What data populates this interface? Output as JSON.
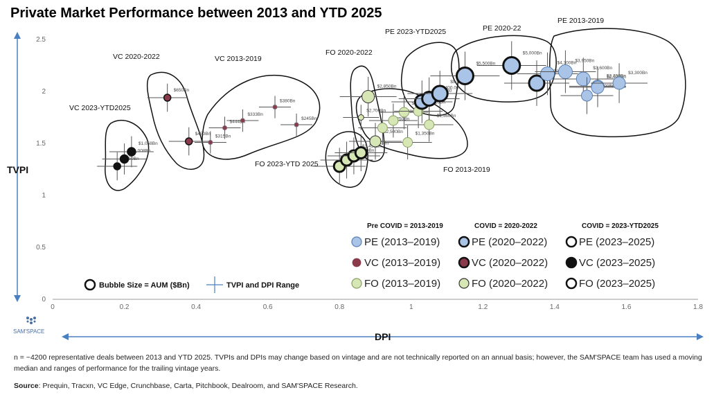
{
  "chart_data": {
    "type": "scatter",
    "title": "Private Market Performance between 2013 and YTD 2025",
    "xlabel": "DPI",
    "ylabel": "TVPI",
    "xlim": [
      0,
      1.8
    ],
    "ylim": [
      0,
      2.5
    ],
    "x_ticks": [
      "0",
      "0.2",
      "0.4",
      "0.6",
      "0.8",
      "1",
      "1.2",
      "1.4",
      "1.6",
      "1.8"
    ],
    "y_ticks": [
      "0",
      "0.5",
      "1",
      "1.5",
      "2",
      "2.5"
    ],
    "colors": {
      "pe": "#a9c4e6",
      "vc": "#8b3a4a",
      "fo": "#d6e6b4",
      "outline": "#111111",
      "range": "#555555",
      "axis_arrow": "#4a7fc0"
    },
    "groups": [
      {
        "label": "VC 2023-YTD2025"
      },
      {
        "label": "VC 2020-2022"
      },
      {
        "label": "VC 2013-2019"
      },
      {
        "label": "FO 2020-2022"
      },
      {
        "label": "FO 2023-YTD 2025"
      },
      {
        "label": "PE 2023-YTD2025"
      },
      {
        "label": "PE 2020-22"
      },
      {
        "label": "PE 2013-2019"
      },
      {
        "label": "FO 2013-2019"
      }
    ],
    "series": [
      {
        "name": "VC 2023-YTD2025",
        "fill": "#111111",
        "ring": "#111111",
        "points": [
          {
            "x": 0.18,
            "y": 1.28,
            "aum": "$950Bn",
            "r": 5
          },
          {
            "x": 0.2,
            "y": 1.35,
            "aum": "$1,008Bn",
            "r": 6
          },
          {
            "x": 0.22,
            "y": 1.42,
            "aum": "$1,058Bn",
            "r": 6
          }
        ]
      },
      {
        "name": "VC 2020-2022",
        "fill": "#8b3a4a",
        "ring": "#111111",
        "points": [
          {
            "x": 0.32,
            "y": 1.94,
            "aum": "$650Bn",
            "r": 5
          },
          {
            "x": 0.38,
            "y": 1.52,
            "aum": "$450Bn",
            "r": 5
          }
        ]
      },
      {
        "name": "VC 2013-2019",
        "fill": "#8b3a4a",
        "ring": "#7a6a7a",
        "points": [
          {
            "x": 0.44,
            "y": 1.51,
            "aum": "$315Bn",
            "r": 3
          },
          {
            "x": 0.48,
            "y": 1.65,
            "aum": "$444Bn",
            "r": 3
          },
          {
            "x": 0.53,
            "y": 1.72,
            "aum": "$333Bn",
            "r": 3
          },
          {
            "x": 0.62,
            "y": 1.85,
            "aum": "$380Bn",
            "r": 3
          },
          {
            "x": 0.68,
            "y": 1.68,
            "aum": "$245Bn",
            "r": 3
          }
        ]
      },
      {
        "name": "FO 2023-YTD2025",
        "fill": "#d6e6b4",
        "ring": "#111111",
        "points": [
          {
            "x": 0.8,
            "y": 1.28,
            "aum": "$3,608Bn",
            "r": 8
          },
          {
            "x": 0.82,
            "y": 1.34,
            "aum": "$3,650Bn",
            "r": 8
          },
          {
            "x": 0.84,
            "y": 1.38,
            "aum": "$3,450Bn",
            "r": 8
          },
          {
            "x": 0.86,
            "y": 1.41,
            "aum": "$3,200Bn",
            "r": 8
          }
        ]
      },
      {
        "name": "FO 2020-2022",
        "fill": "#d6e6b4",
        "ring": "#333333",
        "points": [
          {
            "x": 0.86,
            "y": 1.75,
            "aum": "$2,700Bn",
            "r": 4
          },
          {
            "x": 0.88,
            "y": 1.95,
            "aum": "$2,850Bn",
            "r": 9
          },
          {
            "x": 0.9,
            "y": 1.52,
            "aum": "$2,500Bn",
            "r": 8
          }
        ]
      },
      {
        "name": "FO 2013-2019",
        "fill": "#d6e6b4",
        "ring": "#8aa066",
        "points": [
          {
            "x": 0.92,
            "y": 1.65,
            "aum": "$2,250Bn",
            "r": 7
          },
          {
            "x": 0.95,
            "y": 1.72,
            "aum": "$1,700Bn",
            "r": 7
          },
          {
            "x": 0.98,
            "y": 1.8,
            "aum": "$1,450Bn",
            "r": 7
          },
          {
            "x": 0.99,
            "y": 1.51,
            "aum": "$1,350Bn",
            "r": 7
          },
          {
            "x": 1.02,
            "y": 1.81,
            "aum": "$1,810Bn",
            "r": 7
          },
          {
            "x": 1.05,
            "y": 1.68,
            "aum": "$1,560Bn",
            "r": 7
          }
        ]
      },
      {
        "name": "PE 2023-YTD2025",
        "fill": "#a9c4e6",
        "ring": "#111111",
        "points": [
          {
            "x": 1.03,
            "y": 1.9,
            "aum": "$5,500.00",
            "r": 10
          },
          {
            "x": 1.05,
            "y": 1.93,
            "aum": "$5,400.00",
            "r": 10
          },
          {
            "x": 1.08,
            "y": 1.98,
            "aum": "$5,500.00",
            "r": 11
          }
        ]
      },
      {
        "name": "PE 2020-22",
        "fill": "#a9c4e6",
        "ring": "#111111",
        "points": [
          {
            "x": 1.15,
            "y": 2.15,
            "aum": "$5,500Bn",
            "r": 12
          },
          {
            "x": 1.28,
            "y": 2.25,
            "aum": "$5,000Bn",
            "r": 12
          },
          {
            "x": 1.35,
            "y": 2.08,
            "aum": "$4,500Bn",
            "r": 11
          }
        ]
      },
      {
        "name": "PE 2013-2019",
        "fill": "#a9c4e6",
        "ring": "#5b7fb2",
        "points": [
          {
            "x": 1.38,
            "y": 2.17,
            "aum": "$4,300Bn",
            "r": 10
          },
          {
            "x": 1.43,
            "y": 2.19,
            "aum": "$3,950Bn",
            "r": 10
          },
          {
            "x": 1.48,
            "y": 2.12,
            "aum": "$3,600Bn",
            "r": 10
          },
          {
            "x": 1.52,
            "y": 2.05,
            "aum": "$2,700Bn",
            "r": 9
          },
          {
            "x": 1.49,
            "y": 1.96,
            "aum": "$2,500Bn",
            "r": 8
          },
          {
            "x": 1.52,
            "y": 2.04,
            "aum": "$2,900Bn",
            "r": 9
          },
          {
            "x": 1.58,
            "y": 2.08,
            "aum": "$3,300Bn",
            "r": 9
          }
        ]
      }
    ]
  },
  "legend": {
    "columns": [
      {
        "heading": "Pre COVID = 2013-2019",
        "items": [
          {
            "label": "PE (2013–2019)",
            "fill": "#a9c4e6",
            "ring": "#5b7fb2"
          },
          {
            "label": "VC (2013–2019)",
            "fill": "#8b3a4a",
            "ring": "#ffffff"
          },
          {
            "label": "FO (2013–2019)",
            "fill": "#d6e6b4",
            "ring": "#8aa066"
          }
        ]
      },
      {
        "heading": "COVID = 2020-2022",
        "items": [
          {
            "label": "PE (2020–2022)",
            "fill": "#a9c4e6",
            "ring": "#111111"
          },
          {
            "label": "VC (2020–2022)",
            "fill": "#8b3a4a",
            "ring": "#111111"
          },
          {
            "label": "FO (2020–2022)",
            "fill": "#d6e6b4",
            "ring": "#333333"
          }
        ]
      },
      {
        "heading": "COVID = 2023-YTD2025",
        "items": [
          {
            "label": "PE (2023–2025)",
            "fill": "#ffffff",
            "ring": "#111111"
          },
          {
            "label": "VC (2023–2025)",
            "fill": "#111111",
            "ring": "#111111"
          },
          {
            "label": "FO (2023–2025)",
            "fill": "#ffffff",
            "ring": "#111111"
          }
        ]
      }
    ],
    "bubble_size_label": "Bubble Size = AUM ($Bn)",
    "range_label": "TVPI and DPI Range"
  },
  "logo": {
    "text": "SAM'SPACE"
  },
  "footnote": "n = ~4200 representative deals between 2013 and YTD 2025. TVPIs and DPIs may change based on vintage and are not technically reported on an annual basis; however, the SAM'SPACE team has used a moving median and ranges of performance for the trailing vintage years.",
  "source": {
    "label": "Source",
    "text": ": Prequin, Tracxn, VC Edge, Crunchbase, Carta, Pitchbook, Dealroom, and SAM'SPACE Research."
  }
}
